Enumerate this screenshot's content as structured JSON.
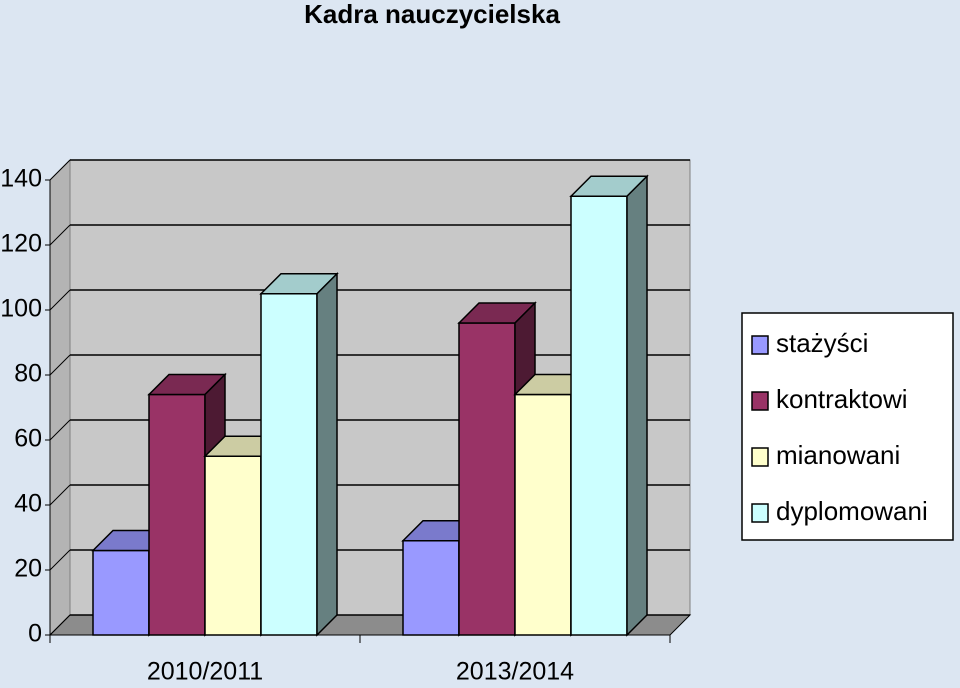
{
  "chart_data": {
    "type": "bar",
    "title": "Kadra nauczycielska",
    "categories": [
      "2010/2011",
      "2013/2014"
    ],
    "series": [
      {
        "name": "stażyści",
        "color": "#9999ff",
        "values": [
          26,
          29
        ]
      },
      {
        "name": "kontraktowi",
        "color": "#993366",
        "values": [
          74,
          96
        ]
      },
      {
        "name": "mianowani",
        "color": "#ffffcc",
        "values": [
          55,
          74
        ]
      },
      {
        "name": "dyplomowani",
        "color": "#ccffff",
        "values": [
          105,
          135
        ]
      }
    ],
    "ylim": [
      0,
      140
    ],
    "yticks": [
      0,
      20,
      40,
      60,
      80,
      100,
      120,
      140
    ],
    "grid": true,
    "legend": "right"
  }
}
